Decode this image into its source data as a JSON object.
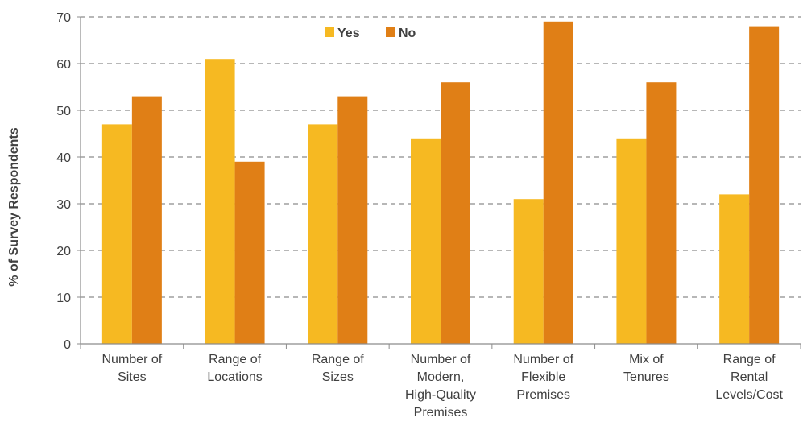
{
  "chart_data": {
    "type": "bar",
    "title": "",
    "xlabel": "",
    "ylabel": "% of Survey Respondents",
    "ylim": [
      0,
      70
    ],
    "yticks": [
      0,
      10,
      20,
      30,
      40,
      50,
      60,
      70
    ],
    "grid": "horizontal dashed",
    "legend_position": "top-center",
    "categories": [
      [
        "Number of",
        "Sites"
      ],
      [
        "Range of",
        "Locations"
      ],
      [
        "Range of",
        "Sizes"
      ],
      [
        "Number of",
        "Modern,",
        "High-Quality",
        "Premises"
      ],
      [
        "Number of",
        "Flexible",
        "Premises"
      ],
      [
        "Mix of",
        "Tenures"
      ],
      [
        "Range of",
        "Rental",
        "Levels/Cost"
      ]
    ],
    "series": [
      {
        "name": "Yes",
        "color": "#F6B922",
        "values": [
          47,
          61,
          47,
          44,
          31,
          44,
          32
        ]
      },
      {
        "name": "No",
        "color": "#E07F16",
        "values": [
          53,
          39,
          53,
          56,
          69,
          56,
          68
        ]
      }
    ]
  }
}
